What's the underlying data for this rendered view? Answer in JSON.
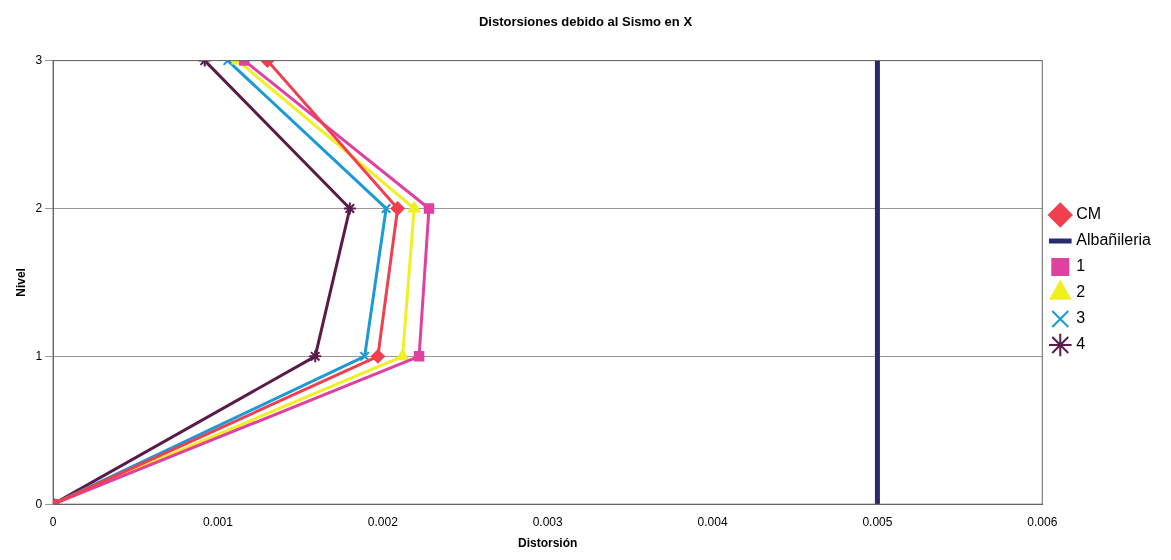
{
  "chart_data": {
    "type": "line",
    "title": "Distorsiones debido al Sismo en X",
    "xlabel": "Distorsión",
    "ylabel": "Nivel",
    "xlim": [
      0,
      0.006
    ],
    "xticks": [
      0,
      0.001,
      0.002,
      0.003,
      0.004,
      0.005,
      0.006
    ],
    "ylim": [
      0,
      3
    ],
    "yticks": [
      0,
      1,
      2,
      3
    ],
    "grid": "y",
    "legend": "right",
    "series": [
      {
        "name": "CM",
        "color": "#f0404f",
        "marker": "diamond",
        "x": [
          0,
          0.00197,
          0.00209,
          0.0013
        ],
        "values": [
          0,
          1,
          2,
          3
        ]
      },
      {
        "name": "Albañileria",
        "color": "#2a2a6e",
        "marker": "none",
        "x": [
          0.005,
          0.005,
          0.005,
          0.005
        ],
        "values": [
          0,
          1,
          2,
          3
        ]
      },
      {
        "name": "1",
        "color": "#e040a0",
        "marker": "square",
        "x": [
          0,
          0.00222,
          0.00228,
          0.00116
        ],
        "values": [
          0,
          1,
          2,
          3
        ]
      },
      {
        "name": "2",
        "color": "#f0f020",
        "marker": "triangle",
        "x": [
          0,
          0.00212,
          0.00219,
          0.00112
        ],
        "values": [
          0,
          1,
          2,
          3
        ]
      },
      {
        "name": "3",
        "color": "#1a9ad6",
        "marker": "cross",
        "x": [
          0,
          0.00189,
          0.00202,
          0.00106
        ],
        "values": [
          0,
          1,
          2,
          3
        ]
      },
      {
        "name": "4",
        "color": "#5a1a4a",
        "marker": "cross",
        "x": [
          0,
          0.00159,
          0.0018,
          0.00092
        ],
        "values": [
          0,
          1,
          2,
          3
        ]
      }
    ]
  }
}
